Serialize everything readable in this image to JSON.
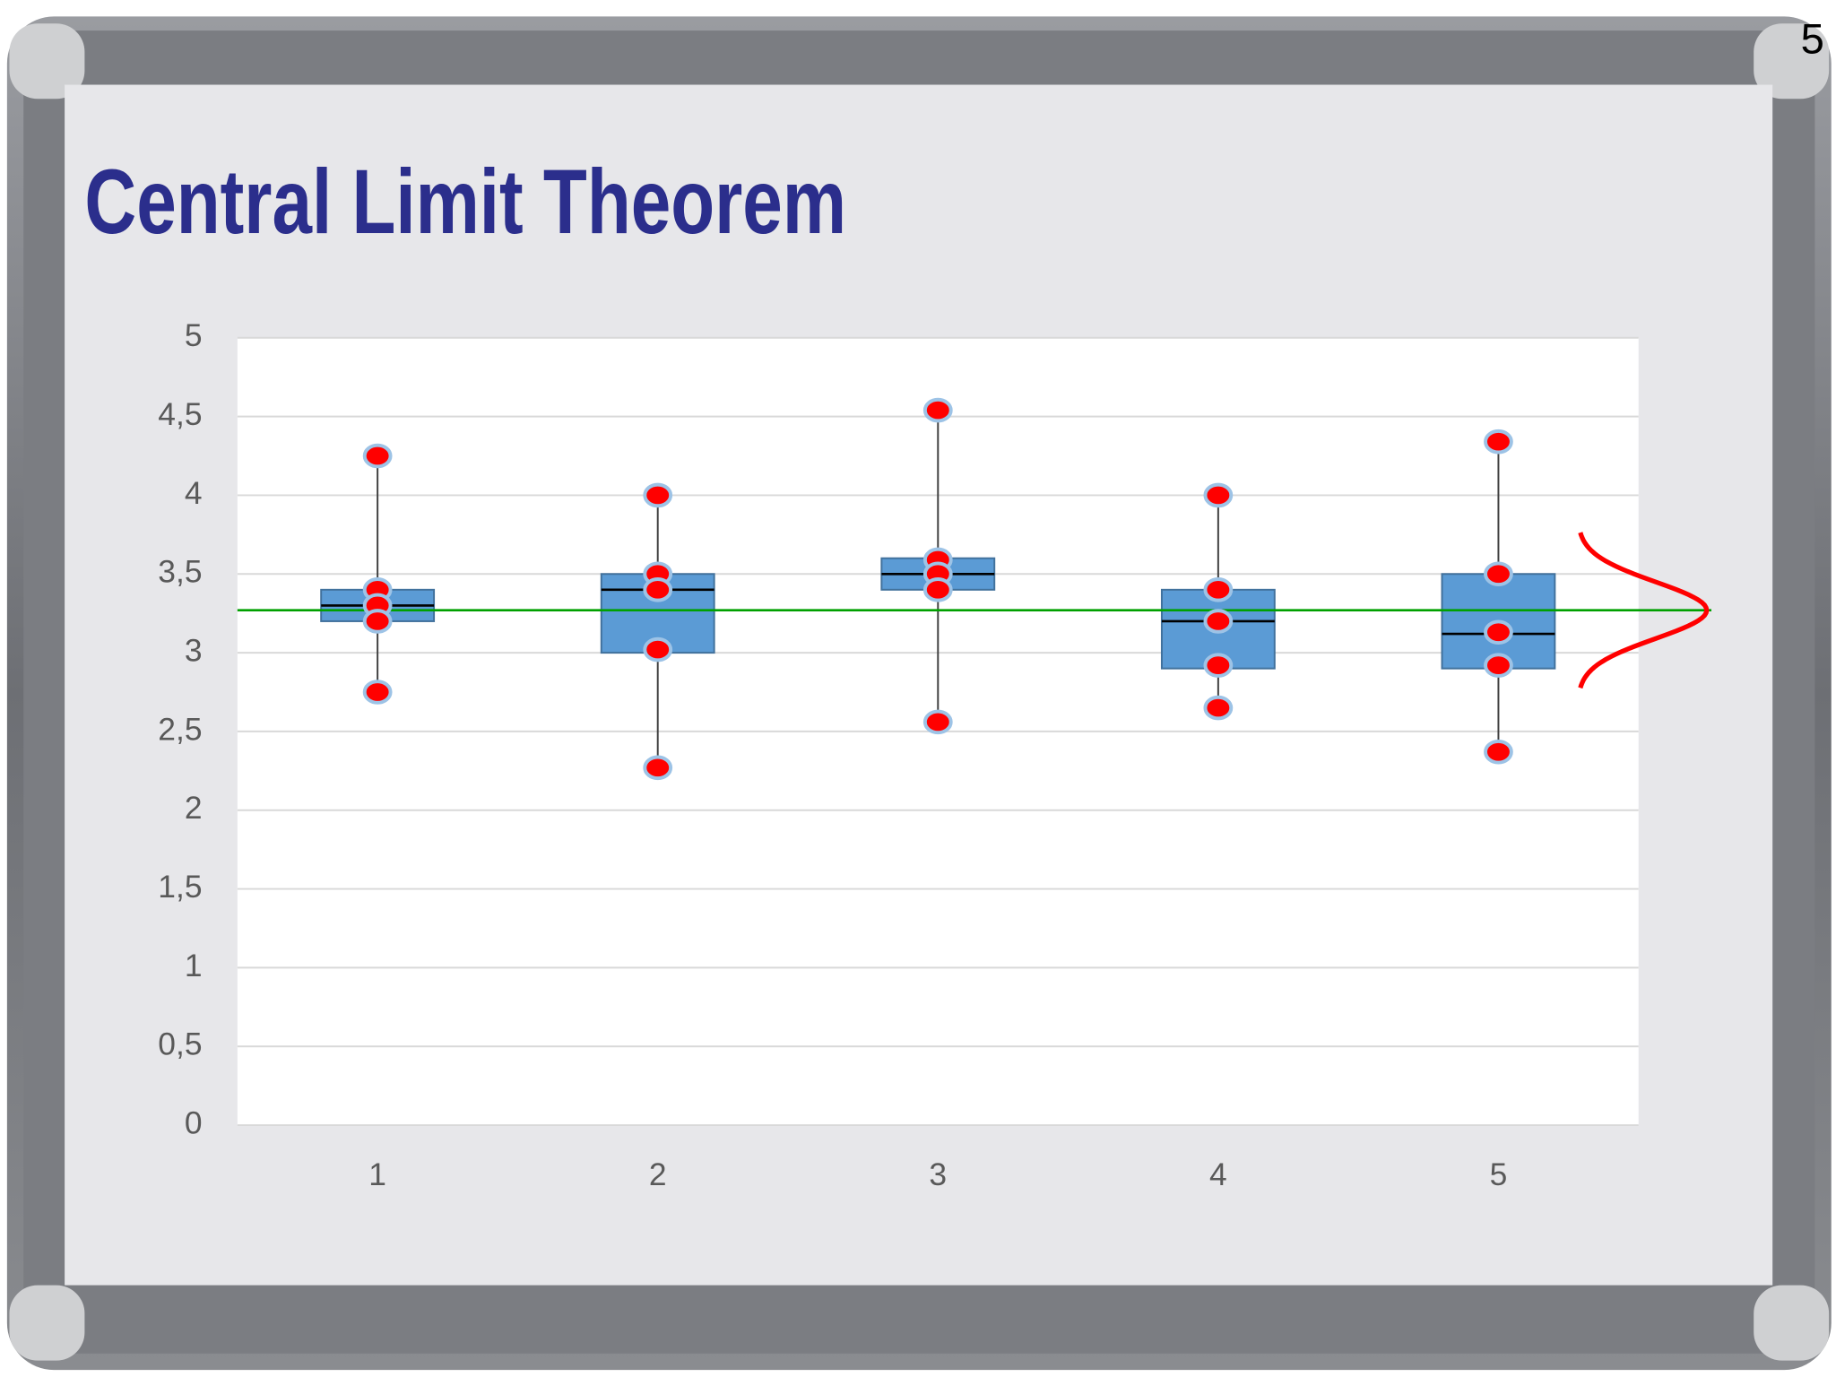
{
  "slide_number": "5",
  "title": "Central Limit Theorem",
  "chart_data": {
    "type": "box",
    "categories": [
      "1",
      "2",
      "3",
      "4",
      "5"
    ],
    "boxes": [
      {
        "whisker_low": 2.75,
        "q1": 3.2,
        "median": 3.3,
        "q3": 3.4,
        "whisker_high": 4.25,
        "points": [
          4.25,
          3.4,
          3.3,
          3.2,
          2.75
        ]
      },
      {
        "whisker_low": 2.27,
        "q1": 3.0,
        "median": 3.4,
        "q3": 3.5,
        "whisker_high": 4.0,
        "points": [
          4.0,
          3.5,
          3.4,
          3.02,
          2.27
        ]
      },
      {
        "whisker_low": 2.56,
        "q1": 3.4,
        "median": 3.5,
        "q3": 3.6,
        "whisker_high": 4.54,
        "points": [
          4.54,
          3.59,
          3.5,
          3.4,
          2.56
        ]
      },
      {
        "whisker_low": 2.65,
        "q1": 2.9,
        "median": 3.2,
        "q3": 3.4,
        "whisker_high": 4.0,
        "points": [
          4.0,
          3.4,
          3.2,
          2.92,
          2.65
        ]
      },
      {
        "whisker_low": 2.37,
        "q1": 2.9,
        "median": 3.12,
        "q3": 3.5,
        "whisker_high": 4.34,
        "points": [
          4.34,
          3.5,
          3.13,
          2.92,
          2.37
        ]
      }
    ],
    "box_color": "#5b9bd5",
    "point_color": "#ff0000",
    "reference_line": {
      "value": 3.27,
      "color": "#00a000"
    },
    "ylim": [
      0,
      5
    ],
    "yticks": [
      0,
      {
        "value": 0.5,
        "label": "0,5"
      },
      1,
      {
        "value": 1.5,
        "label": "1,5"
      },
      2,
      {
        "value": 2.5,
        "label": "2,5"
      },
      3,
      {
        "value": 3.5,
        "label": "3,5"
      },
      4,
      {
        "value": 4.5,
        "label": "4,5"
      },
      5
    ],
    "grid": true
  }
}
